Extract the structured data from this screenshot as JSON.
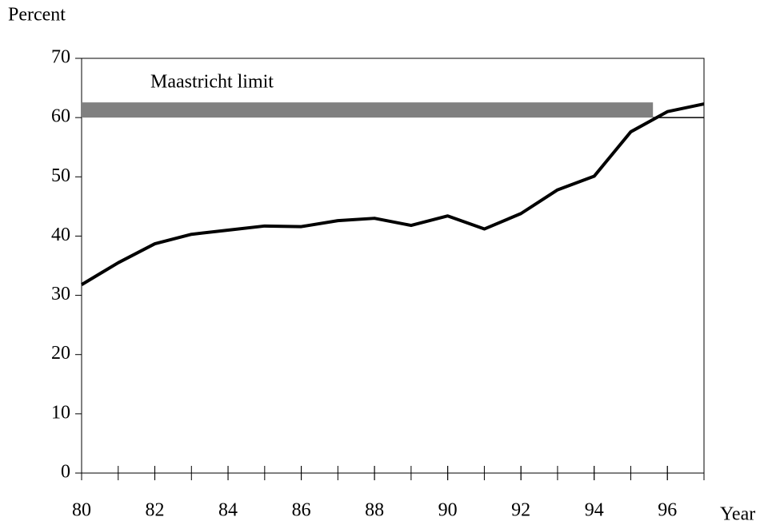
{
  "chart_data": {
    "type": "line",
    "y_label": "Percent",
    "x_label": "Year",
    "x": [
      80,
      81,
      82,
      83,
      84,
      85,
      86,
      87,
      88,
      89,
      90,
      91,
      92,
      93,
      94,
      95,
      96,
      97
    ],
    "series": [
      {
        "color": "#000000",
        "values": [
          31.8,
          35.5,
          38.7,
          40.3,
          41.0,
          41.7,
          41.6,
          42.6,
          43.0,
          41.8,
          43.4,
          41.2,
          43.8,
          47.8,
          50.1,
          57.6,
          61.0,
          62.3
        ]
      }
    ],
    "reference_line": {
      "label": "Maastricht limit",
      "value": 60,
      "color": "#808080"
    },
    "xlim": [
      80,
      97
    ],
    "xticks": [
      80,
      82,
      84,
      86,
      88,
      90,
      92,
      94,
      96
    ],
    "ylim": [
      0,
      70
    ],
    "yticks": [
      0,
      10,
      20,
      30,
      40,
      50,
      60,
      70
    ],
    "grid": false
  }
}
